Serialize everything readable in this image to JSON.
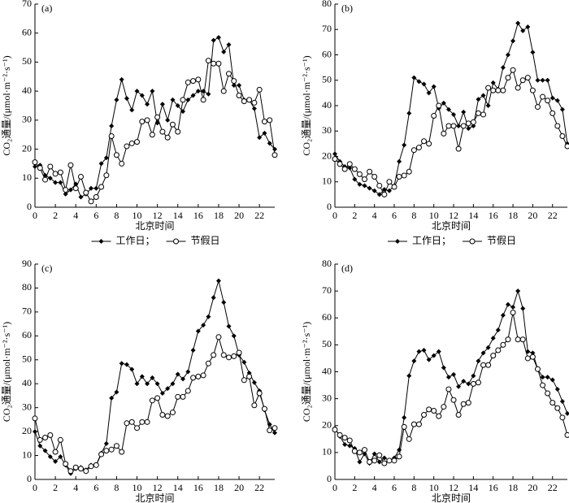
{
  "chart_data": [
    {
      "type": "line",
      "panel_label": "(a)",
      "xlabel": "北京时间",
      "ylabel": "CO₂通量/(μmol·m⁻²·s⁻¹)",
      "x": [
        0,
        0.5,
        1,
        1.5,
        2,
        2.5,
        3,
        3.5,
        4,
        4.5,
        5,
        5.5,
        6,
        6.5,
        7,
        7.5,
        8,
        8.5,
        9,
        9.5,
        10,
        10.5,
        11,
        11.5,
        12,
        12.5,
        13,
        13.5,
        14,
        14.5,
        15,
        15.5,
        16,
        16.5,
        17,
        17.5,
        18,
        18.5,
        19,
        19.5,
        20,
        20.5,
        21,
        21.5,
        22,
        22.5,
        23,
        23.5
      ],
      "xlim": [
        0,
        23.5
      ],
      "xticks": [
        0,
        2,
        4,
        6,
        8,
        10,
        12,
        14,
        16,
        18,
        20,
        22
      ],
      "ylim": [
        0,
        70
      ],
      "yticks": [
        0,
        10,
        20,
        30,
        40,
        50,
        60,
        70
      ],
      "series": [
        {
          "name": "工作日；",
          "color": "#000000",
          "marker": "filled",
          "values": [
            14,
            14.5,
            11,
            10,
            8.5,
            8.5,
            4.5,
            6,
            8,
            3.5,
            4.5,
            6.5,
            6.5,
            15,
            17,
            28,
            37,
            44,
            37.5,
            33.5,
            40,
            38.5,
            35.5,
            40,
            29,
            35.5,
            30,
            37,
            35,
            33,
            37,
            38.5,
            40,
            40,
            39,
            57.5,
            58.5,
            53.5,
            56,
            42,
            42,
            37,
            37,
            34,
            24,
            25.5,
            22,
            20
          ]
        },
        {
          "name": "节假日",
          "color": "#000000",
          "marker": "open",
          "values": [
            15.5,
            13.5,
            9.5,
            14,
            11.5,
            12,
            6,
            14.5,
            6.5,
            10.5,
            5,
            2,
            3.5,
            7,
            11,
            24.5,
            18,
            15,
            21,
            22,
            22.5,
            29.5,
            30,
            25,
            31,
            26,
            24,
            28.5,
            26,
            37,
            43,
            43.5,
            44,
            37,
            50.5,
            49.5,
            49.5,
            40,
            46,
            43.5,
            38.5,
            36.5,
            37,
            36,
            40.5,
            29.5,
            30,
            18
          ]
        }
      ]
    },
    {
      "type": "line",
      "panel_label": "(b)",
      "xlabel": "北京时间",
      "ylabel": "CO₂通量/(μmol·m⁻²·s⁻¹)",
      "x": [
        0,
        0.5,
        1,
        1.5,
        2,
        2.5,
        3,
        3.5,
        4,
        4.5,
        5,
        5.5,
        6,
        6.5,
        7,
        7.5,
        8,
        8.5,
        9,
        9.5,
        10,
        10.5,
        11,
        11.5,
        12,
        12.5,
        13,
        13.5,
        14,
        14.5,
        15,
        15.5,
        16,
        16.5,
        17,
        17.5,
        18,
        18.5,
        19,
        19.5,
        20,
        20.5,
        21,
        21.5,
        22,
        22.5,
        23,
        23.5
      ],
      "xlim": [
        0,
        23.5
      ],
      "xticks": [
        0,
        2,
        4,
        6,
        8,
        10,
        12,
        14,
        16,
        18,
        20,
        22
      ],
      "ylim": [
        0,
        80
      ],
      "yticks": [
        0,
        10,
        20,
        30,
        40,
        50,
        60,
        70,
        80
      ],
      "series": [
        {
          "name": "工作日；",
          "color": "#000000",
          "marker": "filled",
          "values": [
            21,
            18,
            16,
            15.5,
            11,
            9,
            8.5,
            7.5,
            6.5,
            5,
            7,
            6.5,
            8.5,
            18,
            24.5,
            37,
            51,
            49.5,
            48.5,
            45,
            47.5,
            39,
            41,
            38.5,
            36.5,
            32,
            37.5,
            31,
            32,
            42.5,
            44,
            40,
            49,
            46.5,
            55,
            60,
            65.5,
            72.5,
            69.5,
            71,
            61,
            50,
            50,
            50,
            43,
            42,
            38.5,
            25
          ]
        },
        {
          "name": "节假日",
          "color": "#000000",
          "marker": "open",
          "values": [
            19,
            17,
            15,
            17,
            15,
            13,
            11,
            14,
            12,
            8.5,
            5,
            10,
            8,
            12,
            12.5,
            14,
            22.5,
            23.5,
            26,
            25,
            36,
            40,
            29,
            32,
            32,
            23,
            32,
            33,
            33.5,
            37,
            36.5,
            47,
            46,
            46,
            46,
            51,
            54,
            47,
            50,
            51,
            46,
            39.5,
            43.5,
            42,
            37,
            32,
            28,
            24
          ]
        }
      ]
    },
    {
      "type": "line",
      "panel_label": "(c)",
      "xlabel": "北京时间",
      "ylabel": "CO₂通量/(μmol·m⁻²·s⁻¹)",
      "x": [
        0,
        0.5,
        1,
        1.5,
        2,
        2.5,
        3,
        3.5,
        4,
        4.5,
        5,
        5.5,
        6,
        6.5,
        7,
        7.5,
        8,
        8.5,
        9,
        9.5,
        10,
        10.5,
        11,
        11.5,
        12,
        12.5,
        13,
        13.5,
        14,
        14.5,
        15,
        15.5,
        16,
        16.5,
        17,
        17.5,
        18,
        18.5,
        19,
        19.5,
        20,
        20.5,
        21,
        21.5,
        22,
        22.5,
        23,
        23.5
      ],
      "xlim": [
        0,
        23.5
      ],
      "xticks": [
        0,
        2,
        4,
        6,
        8,
        10,
        12,
        14,
        16,
        18,
        20,
        22
      ],
      "ylim": [
        0,
        90
      ],
      "yticks": [
        0,
        10,
        20,
        30,
        40,
        50,
        60,
        70,
        80,
        90
      ],
      "series": [
        {
          "name": "工作日；",
          "color": "#000000",
          "marker": "filled",
          "values": [
            20,
            14,
            12,
            9.5,
            7.5,
            9.5,
            6,
            2.5,
            4.5,
            5,
            4,
            6,
            6,
            11,
            15,
            34,
            36.5,
            48.5,
            48,
            46,
            40,
            43,
            40,
            42.5,
            40,
            36,
            38,
            40,
            44,
            42,
            45,
            54,
            62,
            64.5,
            68,
            76,
            83,
            74,
            64,
            60,
            52,
            49,
            44.5,
            40.5,
            37,
            29,
            23,
            19.5
          ]
        },
        {
          "name": "节假日",
          "color": "#000000",
          "marker": "open",
          "values": [
            25.5,
            16.5,
            17.5,
            18.5,
            11.5,
            16.5,
            6.5,
            3.5,
            5,
            4.5,
            3.5,
            5.5,
            6,
            10.5,
            12,
            12.5,
            14,
            11.5,
            23.5,
            24,
            21.5,
            24,
            24,
            33,
            34,
            27,
            26.5,
            28,
            34.5,
            34.5,
            37,
            42.5,
            43,
            43.5,
            48.5,
            52,
            59.5,
            52,
            51,
            51.5,
            53,
            41.5,
            43,
            31,
            36,
            29.5,
            20.5,
            21.5
          ]
        }
      ]
    },
    {
      "type": "line",
      "panel_label": "(d)",
      "xlabel": "北京时间",
      "ylabel": "CO₂通量/(μmol·m⁻²·s⁻¹)",
      "x": [
        0,
        0.5,
        1,
        1.5,
        2,
        2.5,
        3,
        3.5,
        4,
        4.5,
        5,
        5.5,
        6,
        6.5,
        7,
        7.5,
        8,
        8.5,
        9,
        9.5,
        10,
        10.5,
        11,
        11.5,
        12,
        12.5,
        13,
        13.5,
        14,
        14.5,
        15,
        15.5,
        16,
        16.5,
        17,
        17.5,
        18,
        18.5,
        19,
        19.5,
        20,
        20.5,
        21,
        21.5,
        22,
        22.5,
        23,
        23.5
      ],
      "xlim": [
        0,
        23.5
      ],
      "xticks": [
        0,
        2,
        4,
        6,
        8,
        10,
        12,
        14,
        16,
        18,
        20,
        22
      ],
      "ylim": [
        0,
        80
      ],
      "yticks": [
        0,
        10,
        20,
        30,
        40,
        50,
        60,
        70,
        80
      ],
      "series": [
        {
          "name": "工作日；",
          "color": "#000000",
          "marker": "filled",
          "values": [
            19,
            16,
            13,
            12.5,
            11.5,
            6.5,
            9.5,
            6,
            9.5,
            6.5,
            8,
            7,
            8,
            11,
            23,
            38.5,
            44,
            47.5,
            48,
            44.5,
            46,
            47.5,
            41.5,
            38,
            39,
            34.5,
            36.5,
            35.5,
            38.5,
            44,
            47,
            49,
            52.5,
            55.5,
            61,
            65,
            64,
            70,
            63.5,
            47.5,
            47,
            41,
            38,
            38,
            37,
            33.5,
            29,
            24.5
          ]
        },
        {
          "name": "节假日",
          "color": "#000000",
          "marker": "open",
          "values": [
            18.5,
            16.5,
            15.5,
            14.5,
            10.5,
            10,
            11,
            6.5,
            7,
            9,
            6,
            7,
            7,
            8.5,
            19.5,
            15,
            20.5,
            20.5,
            24,
            26,
            25.5,
            23.5,
            27,
            33.5,
            29.5,
            24,
            28,
            28.5,
            35.5,
            36,
            42.5,
            42.5,
            46,
            48,
            50,
            52,
            62,
            52,
            52,
            45,
            45.5,
            41,
            35,
            32,
            28.5,
            26.5,
            23,
            16.5
          ]
        }
      ]
    }
  ]
}
